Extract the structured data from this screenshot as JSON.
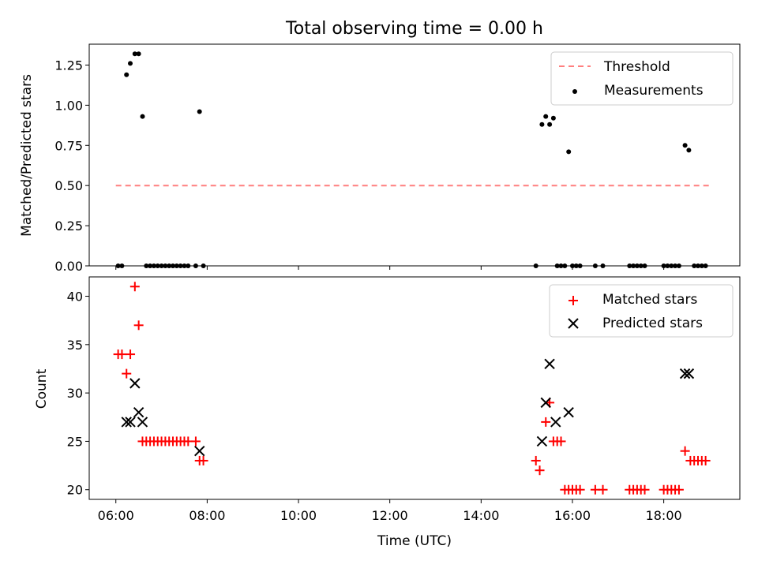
{
  "chart_data": {
    "title": "Total observing time = 0.00 h",
    "xlabel": "Time (UTC)",
    "x_unit": "hours UTC",
    "x_range": [
      "05:25",
      "19:40"
    ],
    "x_tick_labels": [
      "06:00",
      "08:00",
      "10:00",
      "12:00",
      "14:00",
      "16:00",
      "18:00"
    ],
    "panels": [
      {
        "type": "scatter",
        "ylabel": "Matched/Predicted stars",
        "ylim": [
          0,
          1.38
        ],
        "y_tick_labels": [
          "0.00",
          "0.25",
          "0.50",
          "0.75",
          "1.00",
          "1.25"
        ],
        "y_ticks": [
          0,
          0.25,
          0.5,
          0.75,
          1.0,
          1.25
        ],
        "legend_position": "upper-right",
        "series": [
          {
            "name": "Threshold",
            "style": "dashed-line",
            "color": "#ff7f7f",
            "points": [
              [
                "06:00",
                0.5
              ],
              [
                "19:00",
                0.5
              ]
            ]
          },
          {
            "name": "Measurements",
            "style": "dot",
            "color": "#000000",
            "points": [
              [
                "06:03",
                0
              ],
              [
                "06:08",
                0
              ],
              [
                "06:14",
                1.19
              ],
              [
                "06:19",
                1.26
              ],
              [
                "06:25",
                1.32
              ],
              [
                "06:30",
                1.32
              ],
              [
                "06:35",
                0.93
              ],
              [
                "06:40",
                0
              ],
              [
                "06:45",
                0
              ],
              [
                "06:50",
                0
              ],
              [
                "06:55",
                0
              ],
              [
                "07:00",
                0
              ],
              [
                "07:05",
                0
              ],
              [
                "07:10",
                0
              ],
              [
                "07:15",
                0
              ],
              [
                "07:20",
                0
              ],
              [
                "07:25",
                0
              ],
              [
                "07:30",
                0
              ],
              [
                "07:35",
                0
              ],
              [
                "07:45",
                0
              ],
              [
                "07:50",
                0.96
              ],
              [
                "07:55",
                0
              ],
              [
                "15:12",
                0
              ],
              [
                "15:20",
                0.88
              ],
              [
                "15:25",
                0.93
              ],
              [
                "15:30",
                0.88
              ],
              [
                "15:35",
                0.92
              ],
              [
                "15:40",
                0
              ],
              [
                "15:45",
                0
              ],
              [
                "15:50",
                0
              ],
              [
                "15:55",
                0.71
              ],
              [
                "16:00",
                0
              ],
              [
                "16:05",
                0
              ],
              [
                "16:10",
                0
              ],
              [
                "16:30",
                0
              ],
              [
                "16:40",
                0
              ],
              [
                "17:15",
                0
              ],
              [
                "17:20",
                0
              ],
              [
                "17:25",
                0
              ],
              [
                "17:30",
                0
              ],
              [
                "17:35",
                0
              ],
              [
                "18:00",
                0
              ],
              [
                "18:05",
                0
              ],
              [
                "18:10",
                0
              ],
              [
                "18:15",
                0
              ],
              [
                "18:20",
                0
              ],
              [
                "18:28",
                0.75
              ],
              [
                "18:33",
                0.72
              ],
              [
                "18:40",
                0
              ],
              [
                "18:45",
                0
              ],
              [
                "18:50",
                0
              ],
              [
                "18:55",
                0
              ]
            ]
          }
        ]
      },
      {
        "type": "scatter",
        "ylabel": "Count",
        "ylim": [
          19,
          42
        ],
        "y_tick_labels": [
          "20",
          "25",
          "30",
          "35",
          "40"
        ],
        "y_ticks": [
          20,
          25,
          30,
          35,
          40
        ],
        "legend_position": "upper-right",
        "series": [
          {
            "name": "Matched stars",
            "style": "plus",
            "color": "#ff0000",
            "points": [
              [
                "06:03",
                34
              ],
              [
                "06:08",
                34
              ],
              [
                "06:14",
                32
              ],
              [
                "06:19",
                34
              ],
              [
                "06:25",
                41
              ],
              [
                "06:30",
                37
              ],
              [
                "06:35",
                25
              ],
              [
                "06:40",
                25
              ],
              [
                "06:45",
                25
              ],
              [
                "06:50",
                25
              ],
              [
                "06:55",
                25
              ],
              [
                "07:00",
                25
              ],
              [
                "07:05",
                25
              ],
              [
                "07:10",
                25
              ],
              [
                "07:15",
                25
              ],
              [
                "07:20",
                25
              ],
              [
                "07:25",
                25
              ],
              [
                "07:30",
                25
              ],
              [
                "07:35",
                25
              ],
              [
                "07:45",
                25
              ],
              [
                "07:50",
                23
              ],
              [
                "07:55",
                23
              ],
              [
                "15:12",
                23
              ],
              [
                "15:17",
                22
              ],
              [
                "15:25",
                27
              ],
              [
                "15:30",
                29
              ],
              [
                "15:35",
                25
              ],
              [
                "15:40",
                25
              ],
              [
                "15:45",
                25
              ],
              [
                "15:50",
                20
              ],
              [
                "15:55",
                20
              ],
              [
                "16:00",
                20
              ],
              [
                "16:05",
                20
              ],
              [
                "16:10",
                20
              ],
              [
                "16:30",
                20
              ],
              [
                "16:40",
                20
              ],
              [
                "17:15",
                20
              ],
              [
                "17:20",
                20
              ],
              [
                "17:25",
                20
              ],
              [
                "17:30",
                20
              ],
              [
                "17:35",
                20
              ],
              [
                "18:00",
                20
              ],
              [
                "18:05",
                20
              ],
              [
                "18:10",
                20
              ],
              [
                "18:15",
                20
              ],
              [
                "18:20",
                20
              ],
              [
                "18:28",
                24
              ],
              [
                "18:35",
                23
              ],
              [
                "18:40",
                23
              ],
              [
                "18:45",
                23
              ],
              [
                "18:50",
                23
              ],
              [
                "18:55",
                23
              ]
            ]
          },
          {
            "name": "Predicted stars",
            "style": "x",
            "color": "#000000",
            "points": [
              [
                "06:14",
                27
              ],
              [
                "06:19",
                27
              ],
              [
                "06:25",
                31
              ],
              [
                "06:30",
                28
              ],
              [
                "06:35",
                27
              ],
              [
                "07:50",
                24
              ],
              [
                "15:20",
                25
              ],
              [
                "15:25",
                29
              ],
              [
                "15:30",
                33
              ],
              [
                "15:38",
                27
              ],
              [
                "15:55",
                28
              ],
              [
                "18:28",
                32
              ],
              [
                "18:33",
                32
              ]
            ]
          }
        ]
      }
    ]
  }
}
